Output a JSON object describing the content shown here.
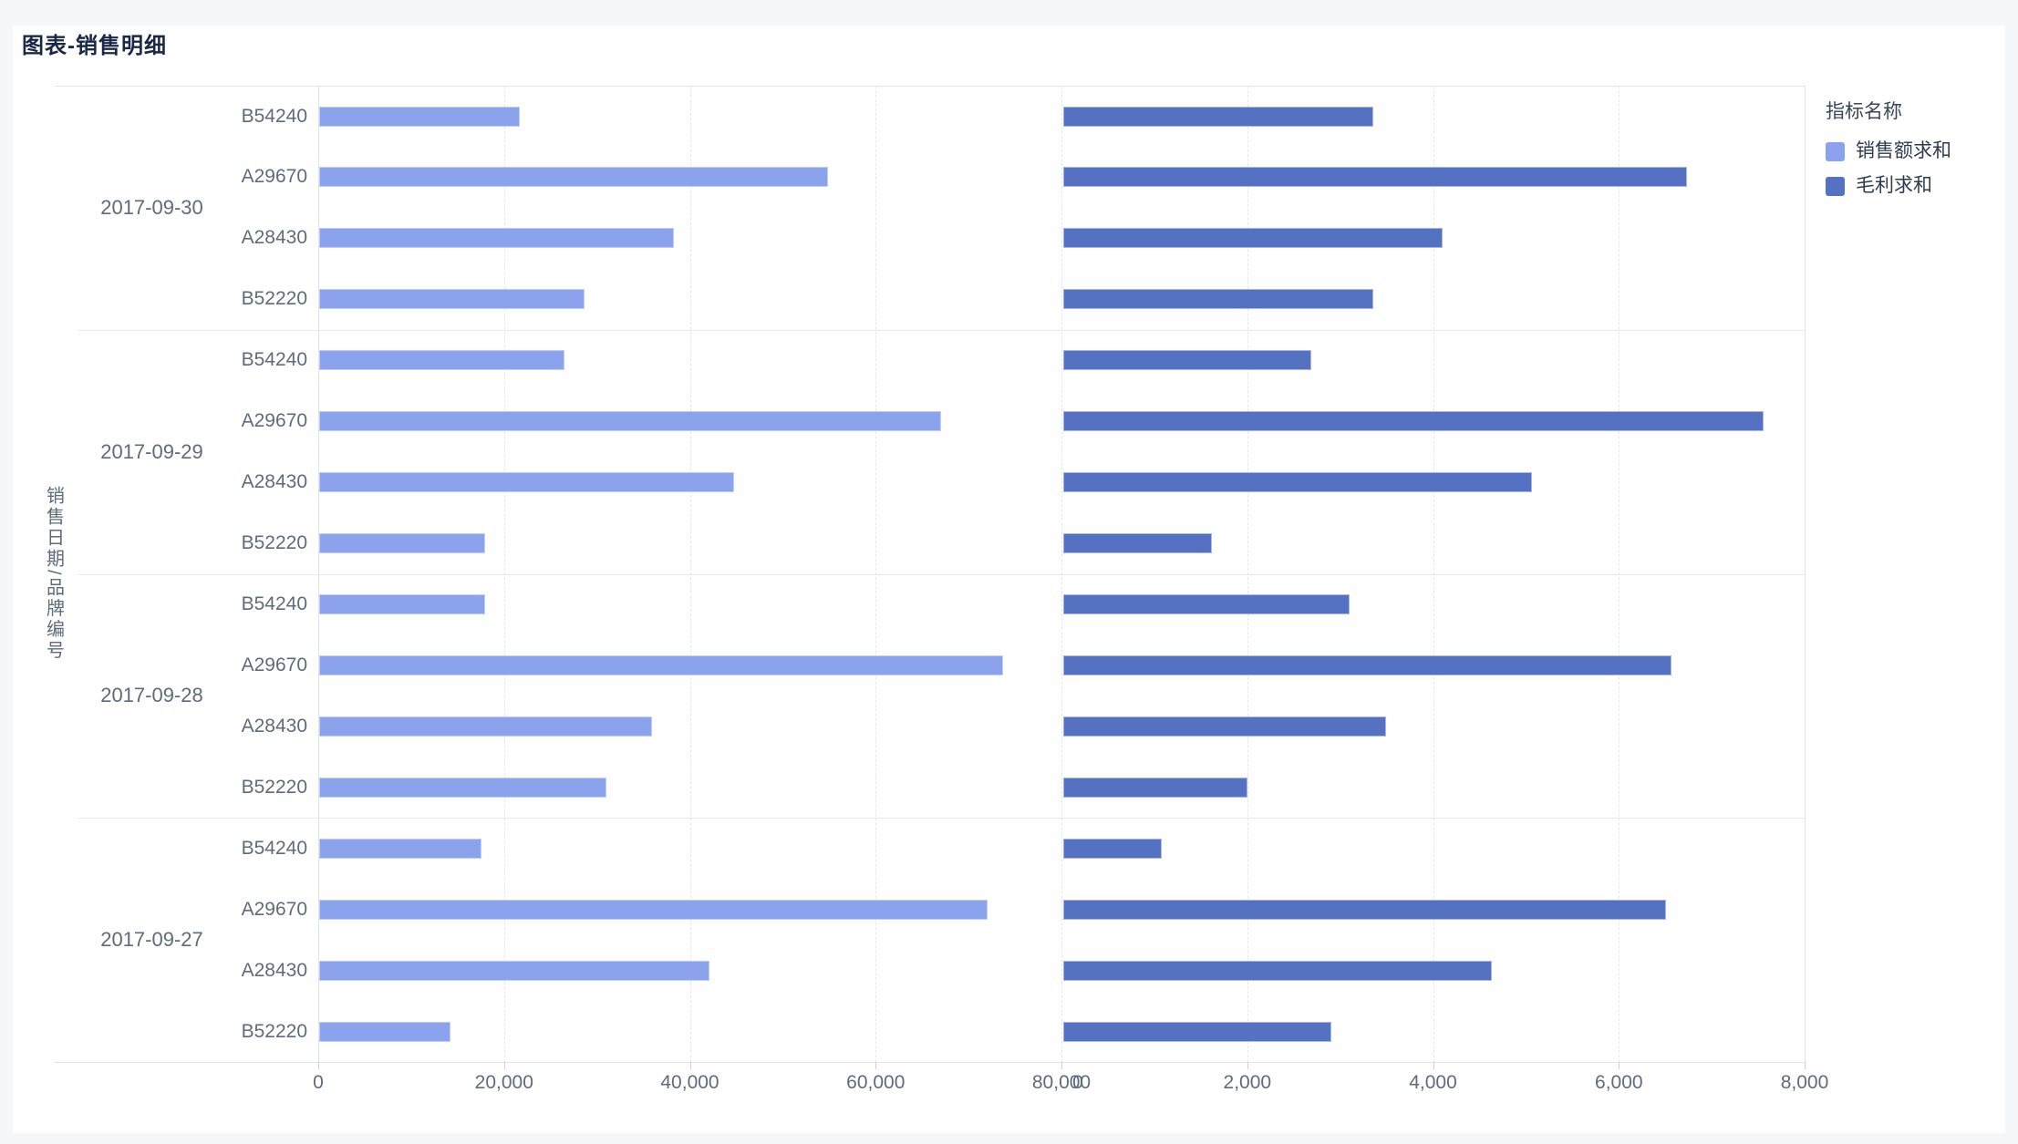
{
  "page": {
    "title": "图表-销售明细"
  },
  "legend": {
    "title": "指标名称",
    "items": [
      {
        "label": "销售额求和",
        "color": "#8BA3EC"
      },
      {
        "label": "毛利求和",
        "color": "#5571C1"
      }
    ]
  },
  "chart_data": {
    "type": "bar",
    "orientation": "horizontal",
    "title": "图表-销售明细",
    "y_axis_title": "销售日期/品牌编号",
    "legend_position": "right",
    "grid": "dashed-vertical",
    "groups": [
      "2017-09-30",
      "2017-09-29",
      "2017-09-28",
      "2017-09-27"
    ],
    "categories_per_group": [
      "B54240",
      "A29670",
      "A28430",
      "B52220"
    ],
    "panels": [
      {
        "name": "销售额求和",
        "color": "#8BA3EC",
        "xlim": [
          0,
          80000
        ],
        "tick_labels": [
          "0",
          "20,000",
          "40,000",
          "60,000",
          "80,000"
        ],
        "values_by_group": [
          [
            21600,
            54800,
            38200,
            28600
          ],
          [
            26400,
            66900,
            44700,
            17900
          ],
          [
            17900,
            73600,
            35800,
            30900
          ],
          [
            17500,
            71900,
            42000,
            14100
          ]
        ]
      },
      {
        "name": "毛利求和",
        "color": "#5571C1",
        "xlim": [
          0,
          8000
        ],
        "tick_labels": [
          "0",
          "2,000",
          "4,000",
          "6,000",
          "8,000"
        ],
        "values_by_group": [
          [
            3340,
            6720,
            4090,
            3340
          ],
          [
            2670,
            7540,
            5050,
            1600
          ],
          [
            3090,
            6550,
            3480,
            1990
          ],
          [
            1060,
            6490,
            4620,
            2890
          ]
        ]
      }
    ]
  }
}
